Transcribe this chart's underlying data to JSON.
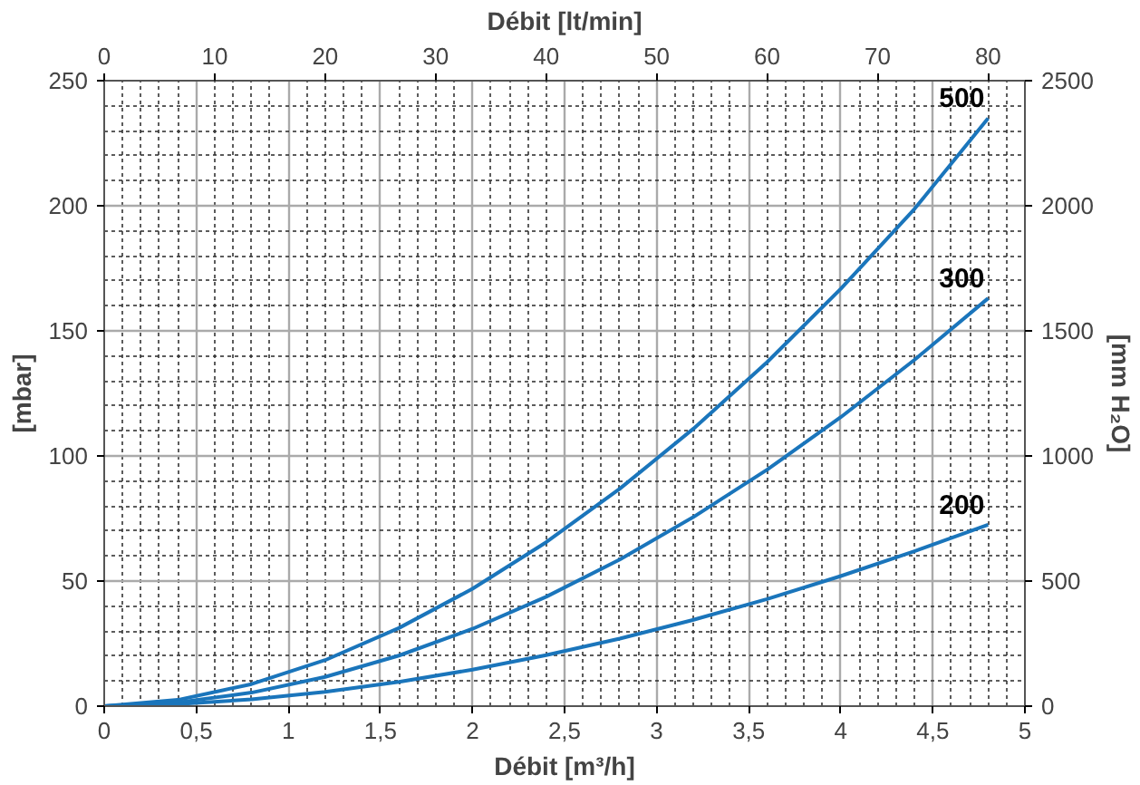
{
  "chart_data": {
    "type": "line",
    "xlabel": "Débit [m³/h]",
    "ylabel": "[mbar]",
    "y2label": "[mm H₂O]",
    "x2label": "Débit [lt/min]",
    "x": [
      0,
      0.4,
      0.8,
      1.2,
      1.6,
      2.0,
      2.4,
      2.8,
      3.2,
      3.6,
      4.0,
      4.4,
      4.8
    ],
    "series": [
      {
        "name": "500",
        "color": "#1a75bb",
        "values": [
          0,
          2.5,
          8.8,
          18.4,
          31.2,
          46.9,
          65.5,
          86.9,
          110.9,
          137.5,
          166.8,
          198.7,
          235
        ]
      },
      {
        "name": "300",
        "color": "#1a75bb",
        "values": [
          0,
          1.5,
          5.4,
          11.7,
          20.2,
          30.9,
          43.7,
          58.6,
          75.6,
          94.5,
          115.5,
          138.4,
          163
        ]
      },
      {
        "name": "200",
        "color": "#1a75bb",
        "values": [
          0,
          0.8,
          2.7,
          5.7,
          9.7,
          14.6,
          20.4,
          27.0,
          34.5,
          42.8,
          52.0,
          61.9,
          72.5
        ]
      }
    ],
    "xlim": [
      0,
      5
    ],
    "xticks": [
      0,
      {
        "value": 0.5,
        "label": "0,5"
      },
      1,
      {
        "value": 1.5,
        "label": "1,5"
      },
      2,
      {
        "value": 2.5,
        "label": "2,5"
      },
      3,
      {
        "value": 3.5,
        "label": "3,5"
      },
      4,
      {
        "value": 4.5,
        "label": "4,5"
      },
      5
    ],
    "ylim": [
      0,
      250
    ],
    "yticks": [
      0,
      50,
      100,
      150,
      200,
      250
    ],
    "y2lim": [
      0,
      2500
    ],
    "y2ticks": [
      0,
      500,
      1000,
      1500,
      2000,
      2500
    ],
    "x2lim": [
      0,
      83.333
    ],
    "x2ticks": [
      0,
      10,
      20,
      30,
      40,
      50,
      60,
      70,
      80
    ],
    "grid": true,
    "marker": "none",
    "line_style": "solid"
  }
}
